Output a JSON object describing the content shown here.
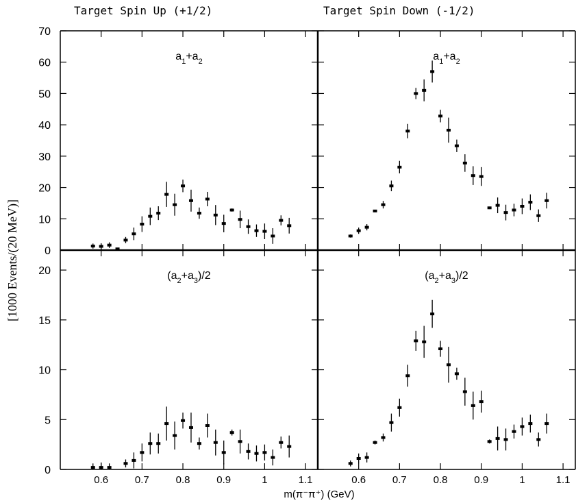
{
  "figure": {
    "header_left": "Target Spin Up (+1/2)",
    "header_right": "Target Spin Down (-1/2)",
    "ylabel": "[1000 Events/(20 MeV)]",
    "xlabel": "m(π⁻π⁺) (GeV)"
  },
  "chart_data": [
    {
      "type": "scatter",
      "panel": "top-left",
      "title": "a1+a2",
      "xlim": [
        0.5,
        1.13
      ],
      "ylim": [
        0,
        70
      ],
      "xticks": [
        0.6,
        0.7,
        0.8,
        0.9,
        1,
        1.1
      ],
      "xtick_labels": [
        "0.6",
        "0.7",
        "0.8",
        "0.9",
        "1",
        "1.1"
      ],
      "yticks": [
        0,
        10,
        20,
        30,
        40,
        50,
        60,
        70
      ],
      "ytick_labels": [
        "0",
        "10",
        "20",
        "30",
        "40",
        "50",
        "60",
        "70"
      ],
      "points": [
        {
          "x": 0.58,
          "y": 1.3,
          "err": 0.8
        },
        {
          "x": 0.6,
          "y": 1.2,
          "err": 1.0
        },
        {
          "x": 0.62,
          "y": 1.6,
          "err": 0.9
        },
        {
          "x": 0.64,
          "y": 0.4,
          "err": 0.3
        },
        {
          "x": 0.66,
          "y": 3.2,
          "err": 1.0
        },
        {
          "x": 0.68,
          "y": 5.2,
          "err": 2.0
        },
        {
          "x": 0.7,
          "y": 8.3,
          "err": 2.5
        },
        {
          "x": 0.72,
          "y": 10.8,
          "err": 2.8
        },
        {
          "x": 0.74,
          "y": 11.8,
          "err": 2.2
        },
        {
          "x": 0.76,
          "y": 17.8,
          "err": 4.0
        },
        {
          "x": 0.78,
          "y": 14.5,
          "err": 3.5
        },
        {
          "x": 0.8,
          "y": 20.5,
          "err": 2.0
        },
        {
          "x": 0.82,
          "y": 15.8,
          "err": 3.5
        },
        {
          "x": 0.84,
          "y": 11.8,
          "err": 1.8
        },
        {
          "x": 0.86,
          "y": 16.3,
          "err": 2.3
        },
        {
          "x": 0.88,
          "y": 11.2,
          "err": 3.2
        },
        {
          "x": 0.9,
          "y": 8.5,
          "err": 2.8
        },
        {
          "x": 0.92,
          "y": 12.8,
          "err": 0.5
        },
        {
          "x": 0.94,
          "y": 9.8,
          "err": 2.8
        },
        {
          "x": 0.96,
          "y": 7.5,
          "err": 2.3
        },
        {
          "x": 0.98,
          "y": 6.2,
          "err": 2.0
        },
        {
          "x": 1.0,
          "y": 6.0,
          "err": 2.5
        },
        {
          "x": 1.02,
          "y": 4.5,
          "err": 2.5
        },
        {
          "x": 1.04,
          "y": 9.5,
          "err": 1.6
        },
        {
          "x": 1.06,
          "y": 7.8,
          "err": 2.5
        }
      ]
    },
    {
      "type": "scatter",
      "panel": "top-right",
      "title": "a1+a2",
      "xlim": [
        0.5,
        1.13
      ],
      "ylim": [
        0,
        70
      ],
      "xticks": [
        0.6,
        0.7,
        0.8,
        0.9,
        1,
        1.1
      ],
      "xtick_labels": [
        "0.6",
        "0.7",
        "0.8",
        "0.9",
        "1",
        "1.1"
      ],
      "yticks": [
        0,
        10,
        20,
        30,
        40,
        50,
        60,
        70
      ],
      "ytick_labels": [
        "0",
        "10",
        "20",
        "30",
        "40",
        "50",
        "60",
        "70"
      ],
      "points": [
        {
          "x": 0.58,
          "y": 4.5,
          "err": 0.5
        },
        {
          "x": 0.6,
          "y": 6.2,
          "err": 1.0
        },
        {
          "x": 0.62,
          "y": 7.3,
          "err": 1.0
        },
        {
          "x": 0.64,
          "y": 12.5,
          "err": 0.4
        },
        {
          "x": 0.66,
          "y": 14.5,
          "err": 1.2
        },
        {
          "x": 0.68,
          "y": 20.5,
          "err": 1.7
        },
        {
          "x": 0.7,
          "y": 26.5,
          "err": 2.0
        },
        {
          "x": 0.72,
          "y": 38.0,
          "err": 2.3
        },
        {
          "x": 0.74,
          "y": 50.0,
          "err": 1.8
        },
        {
          "x": 0.76,
          "y": 51.0,
          "err": 3.5
        },
        {
          "x": 0.78,
          "y": 57.0,
          "err": 3.5
        },
        {
          "x": 0.8,
          "y": 42.8,
          "err": 2.0
        },
        {
          "x": 0.82,
          "y": 38.3,
          "err": 4.0
        },
        {
          "x": 0.84,
          "y": 33.3,
          "err": 2.0
        },
        {
          "x": 0.86,
          "y": 27.8,
          "err": 2.8
        },
        {
          "x": 0.88,
          "y": 23.8,
          "err": 3.0
        },
        {
          "x": 0.9,
          "y": 23.5,
          "err": 3.0
        },
        {
          "x": 0.92,
          "y": 13.5,
          "err": 0.4
        },
        {
          "x": 0.94,
          "y": 14.3,
          "err": 2.5
        },
        {
          "x": 0.96,
          "y": 12.0,
          "err": 2.5
        },
        {
          "x": 0.98,
          "y": 12.8,
          "err": 2.0
        },
        {
          "x": 1.0,
          "y": 14.0,
          "err": 2.5
        },
        {
          "x": 1.02,
          "y": 15.3,
          "err": 2.5
        },
        {
          "x": 1.04,
          "y": 11.0,
          "err": 2.0
        },
        {
          "x": 1.06,
          "y": 15.8,
          "err": 2.5
        }
      ]
    },
    {
      "type": "scatter",
      "panel": "bottom-left",
      "title": "(a2+a3)/2",
      "xlim": [
        0.5,
        1.13
      ],
      "ylim": [
        0,
        22
      ],
      "xticks": [
        0.6,
        0.7,
        0.8,
        0.9,
        1,
        1.1
      ],
      "xtick_labels": [
        "0.6",
        "0.7",
        "0.8",
        "0.9",
        "1",
        "1.1"
      ],
      "yticks": [
        0,
        5,
        10,
        15,
        20
      ],
      "ytick_labels": [
        "0",
        "5",
        "10",
        "15",
        "20"
      ],
      "points": [
        {
          "x": 0.58,
          "y": 0.2,
          "err": 0.4
        },
        {
          "x": 0.6,
          "y": 0.2,
          "err": 0.5
        },
        {
          "x": 0.62,
          "y": 0.2,
          "err": 0.4
        },
        {
          "x": 0.66,
          "y": 0.6,
          "err": 0.4
        },
        {
          "x": 0.68,
          "y": 0.9,
          "err": 0.8
        },
        {
          "x": 0.7,
          "y": 1.7,
          "err": 0.9
        },
        {
          "x": 0.72,
          "y": 2.6,
          "err": 1.1
        },
        {
          "x": 0.74,
          "y": 2.6,
          "err": 1.0
        },
        {
          "x": 0.76,
          "y": 4.6,
          "err": 1.7
        },
        {
          "x": 0.78,
          "y": 3.4,
          "err": 1.4
        },
        {
          "x": 0.8,
          "y": 4.9,
          "err": 0.8
        },
        {
          "x": 0.82,
          "y": 4.2,
          "err": 1.5
        },
        {
          "x": 0.84,
          "y": 2.6,
          "err": 0.6
        },
        {
          "x": 0.86,
          "y": 4.4,
          "err": 1.2
        },
        {
          "x": 0.88,
          "y": 2.7,
          "err": 1.3
        },
        {
          "x": 0.9,
          "y": 1.7,
          "err": 1.2
        },
        {
          "x": 0.92,
          "y": 3.7,
          "err": 0.3
        },
        {
          "x": 0.94,
          "y": 2.8,
          "err": 1.2
        },
        {
          "x": 0.96,
          "y": 1.8,
          "err": 0.8
        },
        {
          "x": 0.98,
          "y": 1.6,
          "err": 0.8
        },
        {
          "x": 1.0,
          "y": 1.7,
          "err": 0.8
        },
        {
          "x": 1.02,
          "y": 1.2,
          "err": 0.8
        },
        {
          "x": 1.04,
          "y": 2.7,
          "err": 0.6
        },
        {
          "x": 1.06,
          "y": 2.3,
          "err": 1.1
        }
      ]
    },
    {
      "type": "scatter",
      "panel": "bottom-right",
      "title": "(a2+a3)/2",
      "xlim": [
        0.5,
        1.13
      ],
      "ylim": [
        0,
        22
      ],
      "xticks": [
        0.6,
        0.7,
        0.8,
        0.9,
        1,
        1.1
      ],
      "xtick_labels": [
        "0.6",
        "0.7",
        "0.8",
        "0.9",
        "1",
        "1.1"
      ],
      "yticks": [
        0,
        5,
        10,
        15,
        20
      ],
      "ytick_labels": [
        "0",
        "5",
        "10",
        "15",
        "20"
      ],
      "points": [
        {
          "x": 0.58,
          "y": 0.6,
          "err": 0.3
        },
        {
          "x": 0.6,
          "y": 1.1,
          "err": 0.5
        },
        {
          "x": 0.62,
          "y": 1.2,
          "err": 0.5
        },
        {
          "x": 0.64,
          "y": 2.7,
          "err": 0.2
        },
        {
          "x": 0.66,
          "y": 3.2,
          "err": 0.4
        },
        {
          "x": 0.68,
          "y": 4.7,
          "err": 0.9
        },
        {
          "x": 0.7,
          "y": 6.2,
          "err": 0.9
        },
        {
          "x": 0.72,
          "y": 9.4,
          "err": 1.1
        },
        {
          "x": 0.74,
          "y": 12.9,
          "err": 1.0
        },
        {
          "x": 0.76,
          "y": 12.8,
          "err": 1.6
        },
        {
          "x": 0.78,
          "y": 15.6,
          "err": 1.4
        },
        {
          "x": 0.8,
          "y": 12.1,
          "err": 0.8
        },
        {
          "x": 0.82,
          "y": 10.5,
          "err": 1.8
        },
        {
          "x": 0.84,
          "y": 9.6,
          "err": 0.6
        },
        {
          "x": 0.86,
          "y": 7.8,
          "err": 1.4
        },
        {
          "x": 0.88,
          "y": 6.4,
          "err": 1.4
        },
        {
          "x": 0.9,
          "y": 6.8,
          "err": 1.1
        },
        {
          "x": 0.92,
          "y": 2.8,
          "err": 0.2
        },
        {
          "x": 0.94,
          "y": 3.1,
          "err": 1.2
        },
        {
          "x": 0.96,
          "y": 3.0,
          "err": 1.1
        },
        {
          "x": 0.98,
          "y": 3.8,
          "err": 0.7
        },
        {
          "x": 1.0,
          "y": 4.3,
          "err": 0.9
        },
        {
          "x": 1.02,
          "y": 4.6,
          "err": 0.9
        },
        {
          "x": 1.04,
          "y": 3.0,
          "err": 0.7
        },
        {
          "x": 1.06,
          "y": 4.6,
          "err": 1.0
        }
      ]
    }
  ]
}
